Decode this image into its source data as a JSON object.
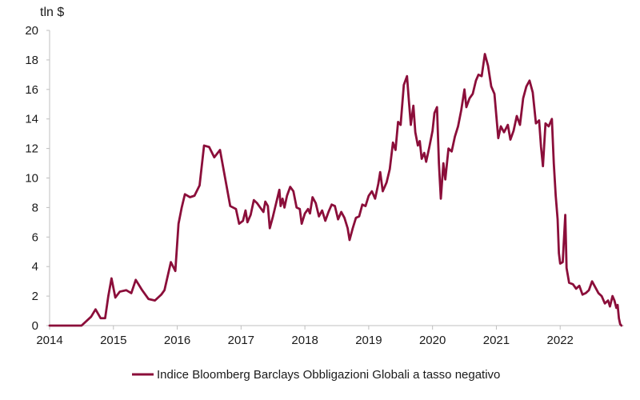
{
  "chart_data": {
    "type": "line",
    "ylabel": "tln $",
    "ylim": [
      0,
      20
    ],
    "y_ticks": [
      "0",
      "2",
      "4",
      "6",
      "8",
      "10",
      "12",
      "14",
      "16",
      "18",
      "20"
    ],
    "xlim": [
      2014,
      2023.0
    ],
    "x_ticks": [
      "2014",
      "2015",
      "2016",
      "2017",
      "2018",
      "2019",
      "2020",
      "2021",
      "2022"
    ],
    "grid": false,
    "legend": "bottom",
    "series": [
      {
        "name": "Indice Bloomberg Barclays Obbligazioni Globali a tasso negativo",
        "color": "#8b0e3a",
        "points": [
          [
            2014.0,
            0.0
          ],
          [
            2014.3,
            0.0
          ],
          [
            2014.5,
            0.0
          ],
          [
            2014.65,
            0.6
          ],
          [
            2014.72,
            1.1
          ],
          [
            2014.8,
            0.5
          ],
          [
            2014.87,
            0.5
          ],
          [
            2014.92,
            2.0
          ],
          [
            2014.97,
            3.2
          ],
          [
            2015.03,
            1.9
          ],
          [
            2015.1,
            2.3
          ],
          [
            2015.2,
            2.4
          ],
          [
            2015.28,
            2.2
          ],
          [
            2015.35,
            3.1
          ],
          [
            2015.45,
            2.4
          ],
          [
            2015.55,
            1.8
          ],
          [
            2015.65,
            1.7
          ],
          [
            2015.75,
            2.1
          ],
          [
            2015.8,
            2.4
          ],
          [
            2015.9,
            4.3
          ],
          [
            2015.97,
            3.7
          ],
          [
            2016.02,
            6.9
          ],
          [
            2016.07,
            8.0
          ],
          [
            2016.12,
            8.9
          ],
          [
            2016.2,
            8.7
          ],
          [
            2016.27,
            8.8
          ],
          [
            2016.35,
            9.5
          ],
          [
            2016.42,
            12.2
          ],
          [
            2016.5,
            12.1
          ],
          [
            2016.58,
            11.4
          ],
          [
            2016.67,
            11.9
          ],
          [
            2016.75,
            10.0
          ],
          [
            2016.83,
            8.1
          ],
          [
            2016.92,
            7.9
          ],
          [
            2016.97,
            6.9
          ],
          [
            2017.03,
            7.1
          ],
          [
            2017.07,
            7.8
          ],
          [
            2017.1,
            7.0
          ],
          [
            2017.15,
            7.5
          ],
          [
            2017.2,
            8.5
          ],
          [
            2017.25,
            8.3
          ],
          [
            2017.3,
            8.0
          ],
          [
            2017.35,
            7.7
          ],
          [
            2017.38,
            8.4
          ],
          [
            2017.42,
            8.1
          ],
          [
            2017.45,
            6.6
          ],
          [
            2017.5,
            7.4
          ],
          [
            2017.55,
            8.3
          ],
          [
            2017.6,
            9.2
          ],
          [
            2017.62,
            8.1
          ],
          [
            2017.65,
            8.6
          ],
          [
            2017.68,
            8.0
          ],
          [
            2017.72,
            8.8
          ],
          [
            2017.77,
            9.4
          ],
          [
            2017.82,
            9.1
          ],
          [
            2017.87,
            8.0
          ],
          [
            2017.92,
            7.9
          ],
          [
            2017.95,
            6.9
          ],
          [
            2018.0,
            7.6
          ],
          [
            2018.05,
            7.9
          ],
          [
            2018.08,
            7.6
          ],
          [
            2018.12,
            8.7
          ],
          [
            2018.17,
            8.3
          ],
          [
            2018.22,
            7.4
          ],
          [
            2018.27,
            7.8
          ],
          [
            2018.32,
            7.1
          ],
          [
            2018.37,
            7.7
          ],
          [
            2018.42,
            8.2
          ],
          [
            2018.47,
            8.1
          ],
          [
            2018.52,
            7.2
          ],
          [
            2018.57,
            7.7
          ],
          [
            2018.62,
            7.3
          ],
          [
            2018.67,
            6.6
          ],
          [
            2018.7,
            5.8
          ],
          [
            2018.75,
            6.6
          ],
          [
            2018.8,
            7.3
          ],
          [
            2018.85,
            7.4
          ],
          [
            2018.9,
            8.2
          ],
          [
            2018.95,
            8.1
          ],
          [
            2019.0,
            8.8
          ],
          [
            2019.05,
            9.1
          ],
          [
            2019.1,
            8.6
          ],
          [
            2019.15,
            9.6
          ],
          [
            2019.18,
            10.4
          ],
          [
            2019.22,
            9.1
          ],
          [
            2019.28,
            9.7
          ],
          [
            2019.33,
            10.6
          ],
          [
            2019.38,
            12.4
          ],
          [
            2019.42,
            11.9
          ],
          [
            2019.46,
            13.8
          ],
          [
            2019.5,
            13.6
          ],
          [
            2019.55,
            16.3
          ],
          [
            2019.6,
            16.9
          ],
          [
            2019.63,
            15.2
          ],
          [
            2019.66,
            13.6
          ],
          [
            2019.7,
            14.9
          ],
          [
            2019.73,
            13.1
          ],
          [
            2019.77,
            12.2
          ],
          [
            2019.8,
            12.5
          ],
          [
            2019.83,
            11.3
          ],
          [
            2019.87,
            11.7
          ],
          [
            2019.9,
            11.1
          ],
          [
            2019.95,
            12.1
          ],
          [
            2020.0,
            13.2
          ],
          [
            2020.03,
            14.4
          ],
          [
            2020.07,
            14.8
          ],
          [
            2020.1,
            11.0
          ],
          [
            2020.13,
            8.6
          ],
          [
            2020.17,
            11.0
          ],
          [
            2020.2,
            9.9
          ],
          [
            2020.25,
            12.0
          ],
          [
            2020.3,
            11.8
          ],
          [
            2020.35,
            12.8
          ],
          [
            2020.4,
            13.5
          ],
          [
            2020.45,
            14.6
          ],
          [
            2020.5,
            16.0
          ],
          [
            2020.53,
            14.8
          ],
          [
            2020.58,
            15.4
          ],
          [
            2020.63,
            15.7
          ],
          [
            2020.68,
            16.6
          ],
          [
            2020.72,
            17.0
          ],
          [
            2020.77,
            16.9
          ],
          [
            2020.82,
            18.4
          ],
          [
            2020.87,
            17.6
          ],
          [
            2020.92,
            16.2
          ],
          [
            2020.97,
            15.7
          ],
          [
            2021.03,
            12.7
          ],
          [
            2021.07,
            13.5
          ],
          [
            2021.12,
            13.1
          ],
          [
            2021.18,
            13.6
          ],
          [
            2021.22,
            12.6
          ],
          [
            2021.27,
            13.2
          ],
          [
            2021.32,
            14.2
          ],
          [
            2021.37,
            13.6
          ],
          [
            2021.42,
            15.4
          ],
          [
            2021.47,
            16.2
          ],
          [
            2021.52,
            16.6
          ],
          [
            2021.57,
            15.8
          ],
          [
            2021.62,
            13.7
          ],
          [
            2021.67,
            13.9
          ],
          [
            2021.7,
            12.1
          ],
          [
            2021.73,
            10.8
          ],
          [
            2021.77,
            13.7
          ],
          [
            2021.82,
            13.5
          ],
          [
            2021.87,
            14.0
          ],
          [
            2021.9,
            11.0
          ],
          [
            2021.93,
            8.8
          ],
          [
            2021.96,
            7.2
          ],
          [
            2021.98,
            4.9
          ],
          [
            2022.0,
            4.2
          ],
          [
            2022.04,
            4.3
          ],
          [
            2022.08,
            7.5
          ],
          [
            2022.1,
            3.9
          ],
          [
            2022.14,
            2.9
          ],
          [
            2022.2,
            2.8
          ],
          [
            2022.25,
            2.5
          ],
          [
            2022.3,
            2.7
          ],
          [
            2022.35,
            2.1
          ],
          [
            2022.4,
            2.2
          ],
          [
            2022.45,
            2.4
          ],
          [
            2022.5,
            3.0
          ],
          [
            2022.55,
            2.6
          ],
          [
            2022.6,
            2.2
          ],
          [
            2022.65,
            2.0
          ],
          [
            2022.7,
            1.5
          ],
          [
            2022.75,
            1.7
          ],
          [
            2022.78,
            1.3
          ],
          [
            2022.82,
            2.0
          ],
          [
            2022.85,
            1.7
          ],
          [
            2022.88,
            1.2
          ],
          [
            2022.9,
            1.4
          ],
          [
            2022.92,
            0.5
          ],
          [
            2022.94,
            0.1
          ],
          [
            2022.96,
            0.0
          ]
        ]
      }
    ]
  }
}
